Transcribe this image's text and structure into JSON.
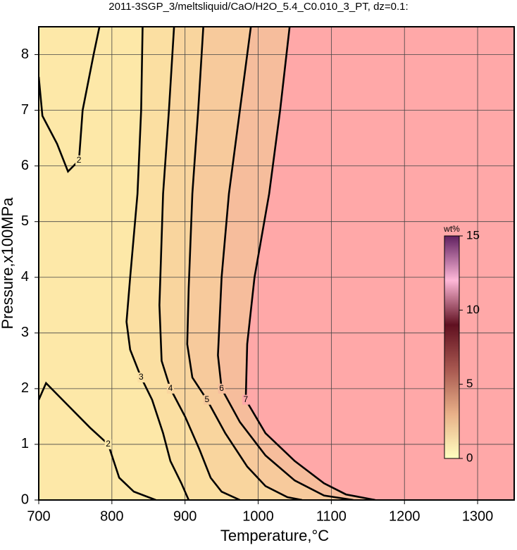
{
  "chart_data": {
    "type": "contour",
    "title": "2011-3SGP_3/meltsliquid/CaO/H2O_5.4_C0.010_3_PT, dz=0.1:",
    "x_label": "Temperature,°C",
    "y_label": "Pressure,x100MPa",
    "xlim": [
      700,
      1350
    ],
    "ylim": [
      0,
      8.5
    ],
    "xticks": [
      700,
      800,
      900,
      1000,
      1100,
      1200,
      1300
    ],
    "yticks": [
      0,
      1,
      2,
      3,
      4,
      5,
      6,
      7,
      8
    ],
    "grid": true,
    "background": "#fde8a8",
    "contours": [
      {
        "level": 2,
        "color": "#000000",
        "x": [
          700,
          705,
          725,
          740,
          755,
          760,
          775,
          783,
          null,
          700,
          710,
          740,
          770,
          795,
          800,
          810,
          830,
          860
        ],
        "y": [
          7.6,
          6.9,
          6.4,
          5.9,
          6.1,
          7.0,
          8.0,
          8.5,
          null,
          1.8,
          2.1,
          1.7,
          1.3,
          1.0,
          0.8,
          0.4,
          0.15,
          0
        ]
      },
      {
        "level": 3,
        "color": "#000000",
        "fill": "#fbdfa2",
        "x": [
          842,
          840,
          835,
          825,
          820,
          825,
          840,
          855,
          870,
          880,
          895,
          905
        ],
        "y": [
          8.5,
          7,
          5.5,
          4,
          3.2,
          2.7,
          2.2,
          1.8,
          1.2,
          0.7,
          0.3,
          0
        ]
      },
      {
        "level": 4,
        "color": "#000000",
        "fill": "#f9d59e",
        "x": [
          885,
          878,
          870,
          865,
          868,
          880,
          900,
          920,
          935,
          950,
          975
        ],
        "y": [
          8.5,
          7,
          5.5,
          3.5,
          2.5,
          2.0,
          1.5,
          0.9,
          0.4,
          0.15,
          0
        ]
      },
      {
        "level": 5,
        "color": "#000000",
        "fill": "#f7ca9c",
        "x": [
          925,
          918,
          910,
          905,
          903,
          910,
          930,
          955,
          985,
          1010,
          1040,
          1060
        ],
        "y": [
          8.5,
          7,
          5.5,
          3.8,
          2.8,
          2.2,
          1.8,
          1.2,
          0.6,
          0.25,
          0.05,
          0
        ]
      },
      {
        "level": 6,
        "color": "#000000",
        "fill": "#f6bd9c",
        "x": [
          990,
          975,
          960,
          950,
          945,
          950,
          975,
          1010,
          1050,
          1090,
          1130
        ],
        "y": [
          8.5,
          7,
          5.5,
          4,
          2.6,
          2.0,
          1.4,
          0.8,
          0.35,
          0.08,
          0
        ]
      },
      {
        "level": 7,
        "color": "#000000",
        "fill": "#ffa8a8",
        "x": [
          1043,
          1030,
          1015,
          995,
          985,
          983,
          1010,
          1050,
          1090,
          1120,
          1160
        ],
        "y": [
          8.5,
          7,
          5.5,
          4,
          2.8,
          1.8,
          1.2,
          0.7,
          0.3,
          0.1,
          0
        ]
      }
    ],
    "colorbar": {
      "label": "wt%",
      "lim": [
        0,
        15
      ],
      "ticks": [
        0,
        5,
        10,
        15
      ],
      "colors": [
        "#ffffc0",
        "#e8b088",
        "#a85850",
        "#601020",
        "#ffb8d8",
        "#602060"
      ]
    }
  }
}
